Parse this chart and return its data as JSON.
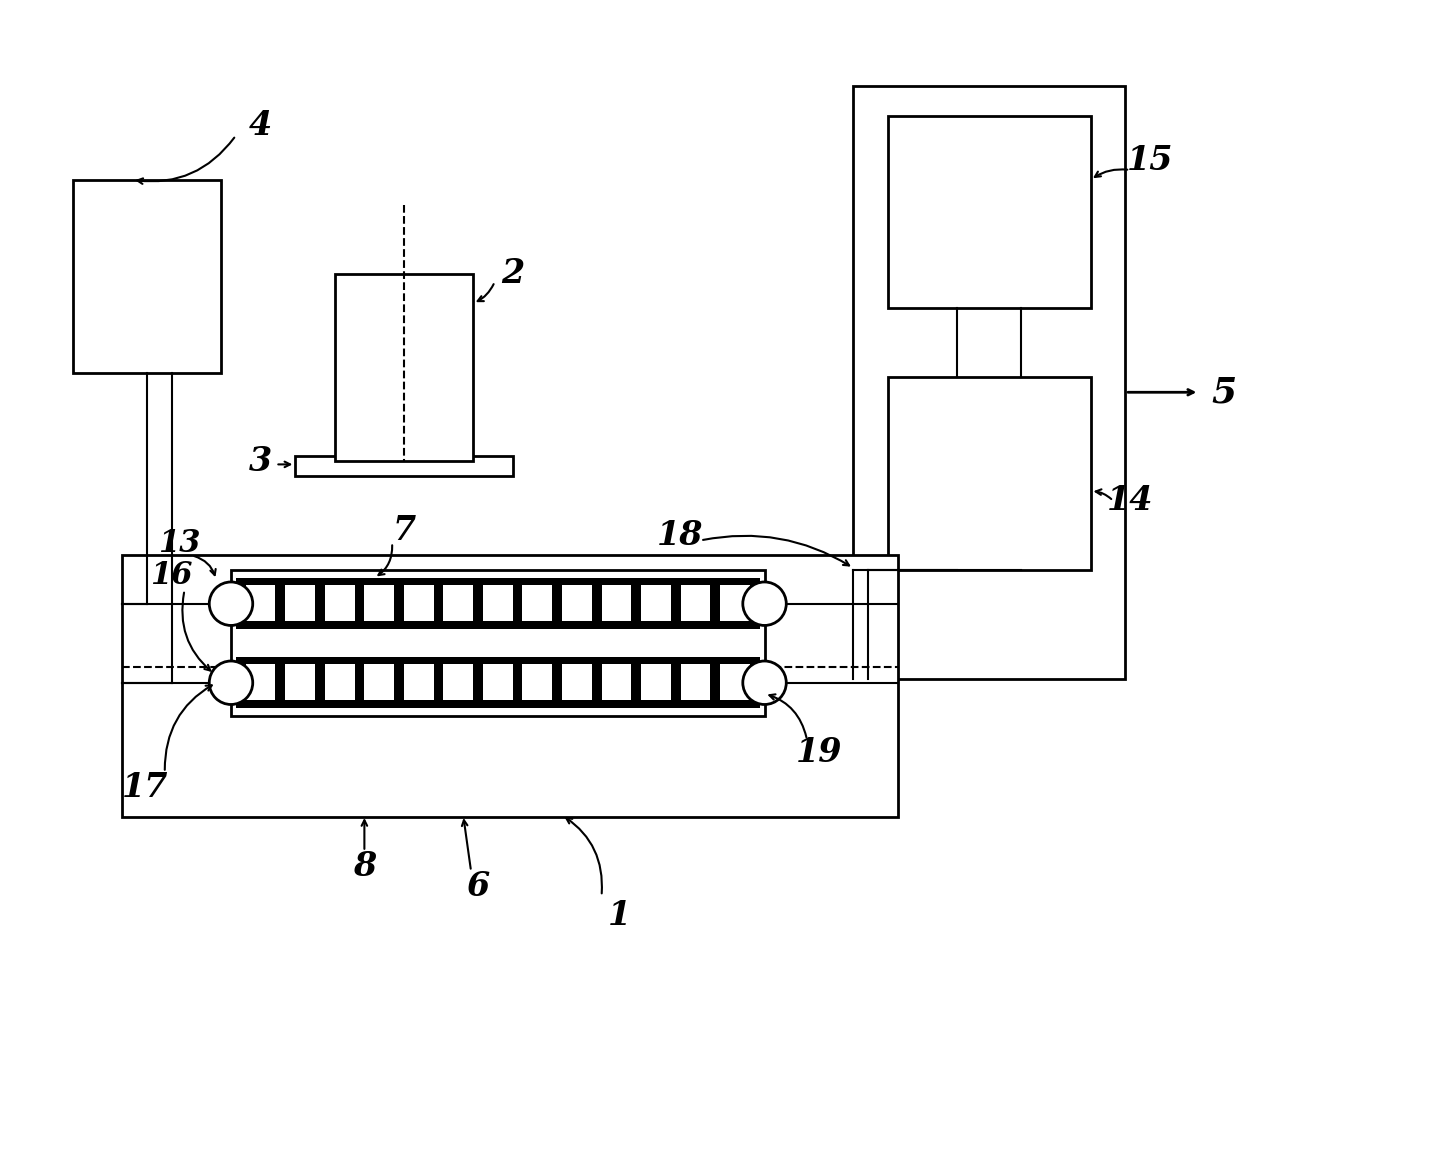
{
  "bg_color": "#ffffff",
  "line_color": "#000000",
  "fig_width": 14.52,
  "fig_height": 11.59
}
